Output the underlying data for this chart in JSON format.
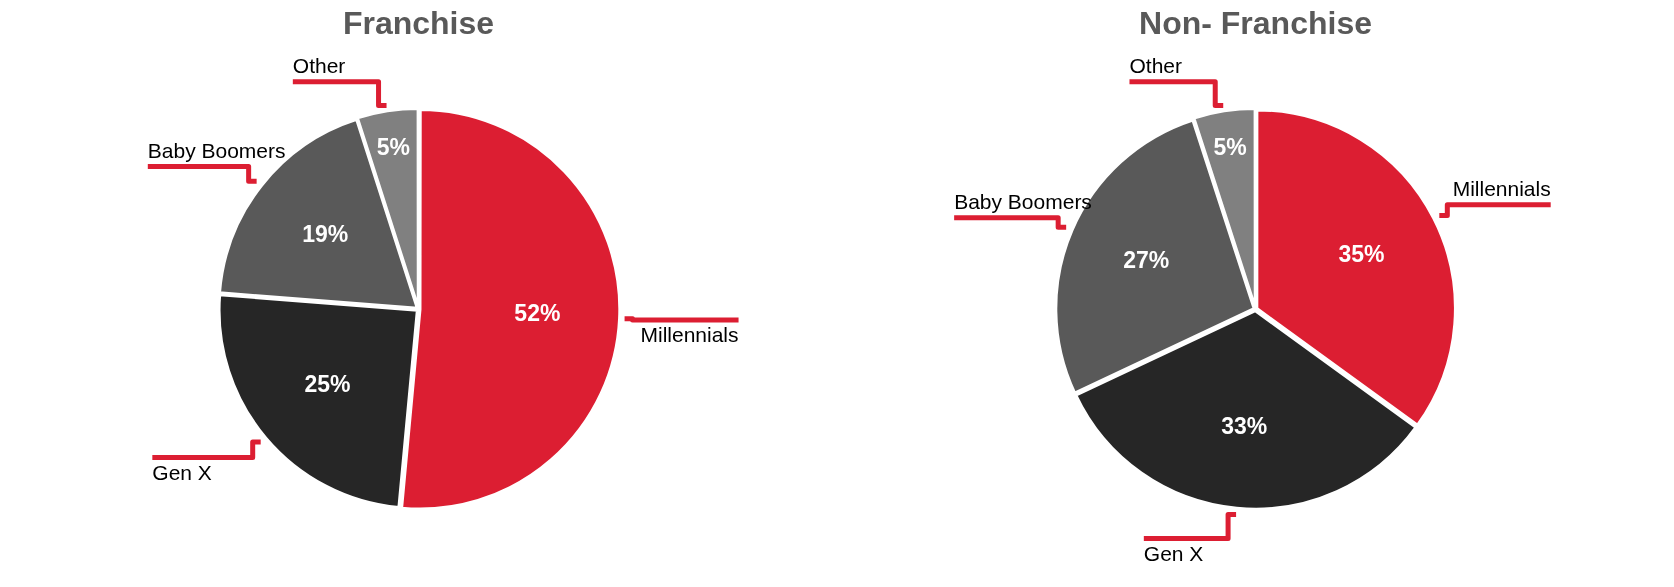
{
  "chart_data": [
    {
      "type": "pie",
      "title": "Franchise",
      "categories": [
        "Millennials",
        "Gen X",
        "Baby Boomers",
        "Other"
      ],
      "values": [
        52,
        25,
        19,
        5
      ],
      "value_labels": [
        "52%",
        "25%",
        "19%",
        "5%"
      ],
      "colors": [
        "#dc1e32",
        "#262626",
        "#595959",
        "#808080"
      ],
      "legend": false
    },
    {
      "type": "pie",
      "title": "Non- Franchise",
      "categories": [
        "Millennials",
        "Gen X",
        "Baby Boomers",
        "Other"
      ],
      "values": [
        35,
        33,
        27,
        5
      ],
      "value_labels": [
        "35%",
        "33%",
        "27%",
        "5%"
      ],
      "colors": [
        "#dc1e32",
        "#262626",
        "#595959",
        "#808080"
      ],
      "legend": false
    }
  ]
}
